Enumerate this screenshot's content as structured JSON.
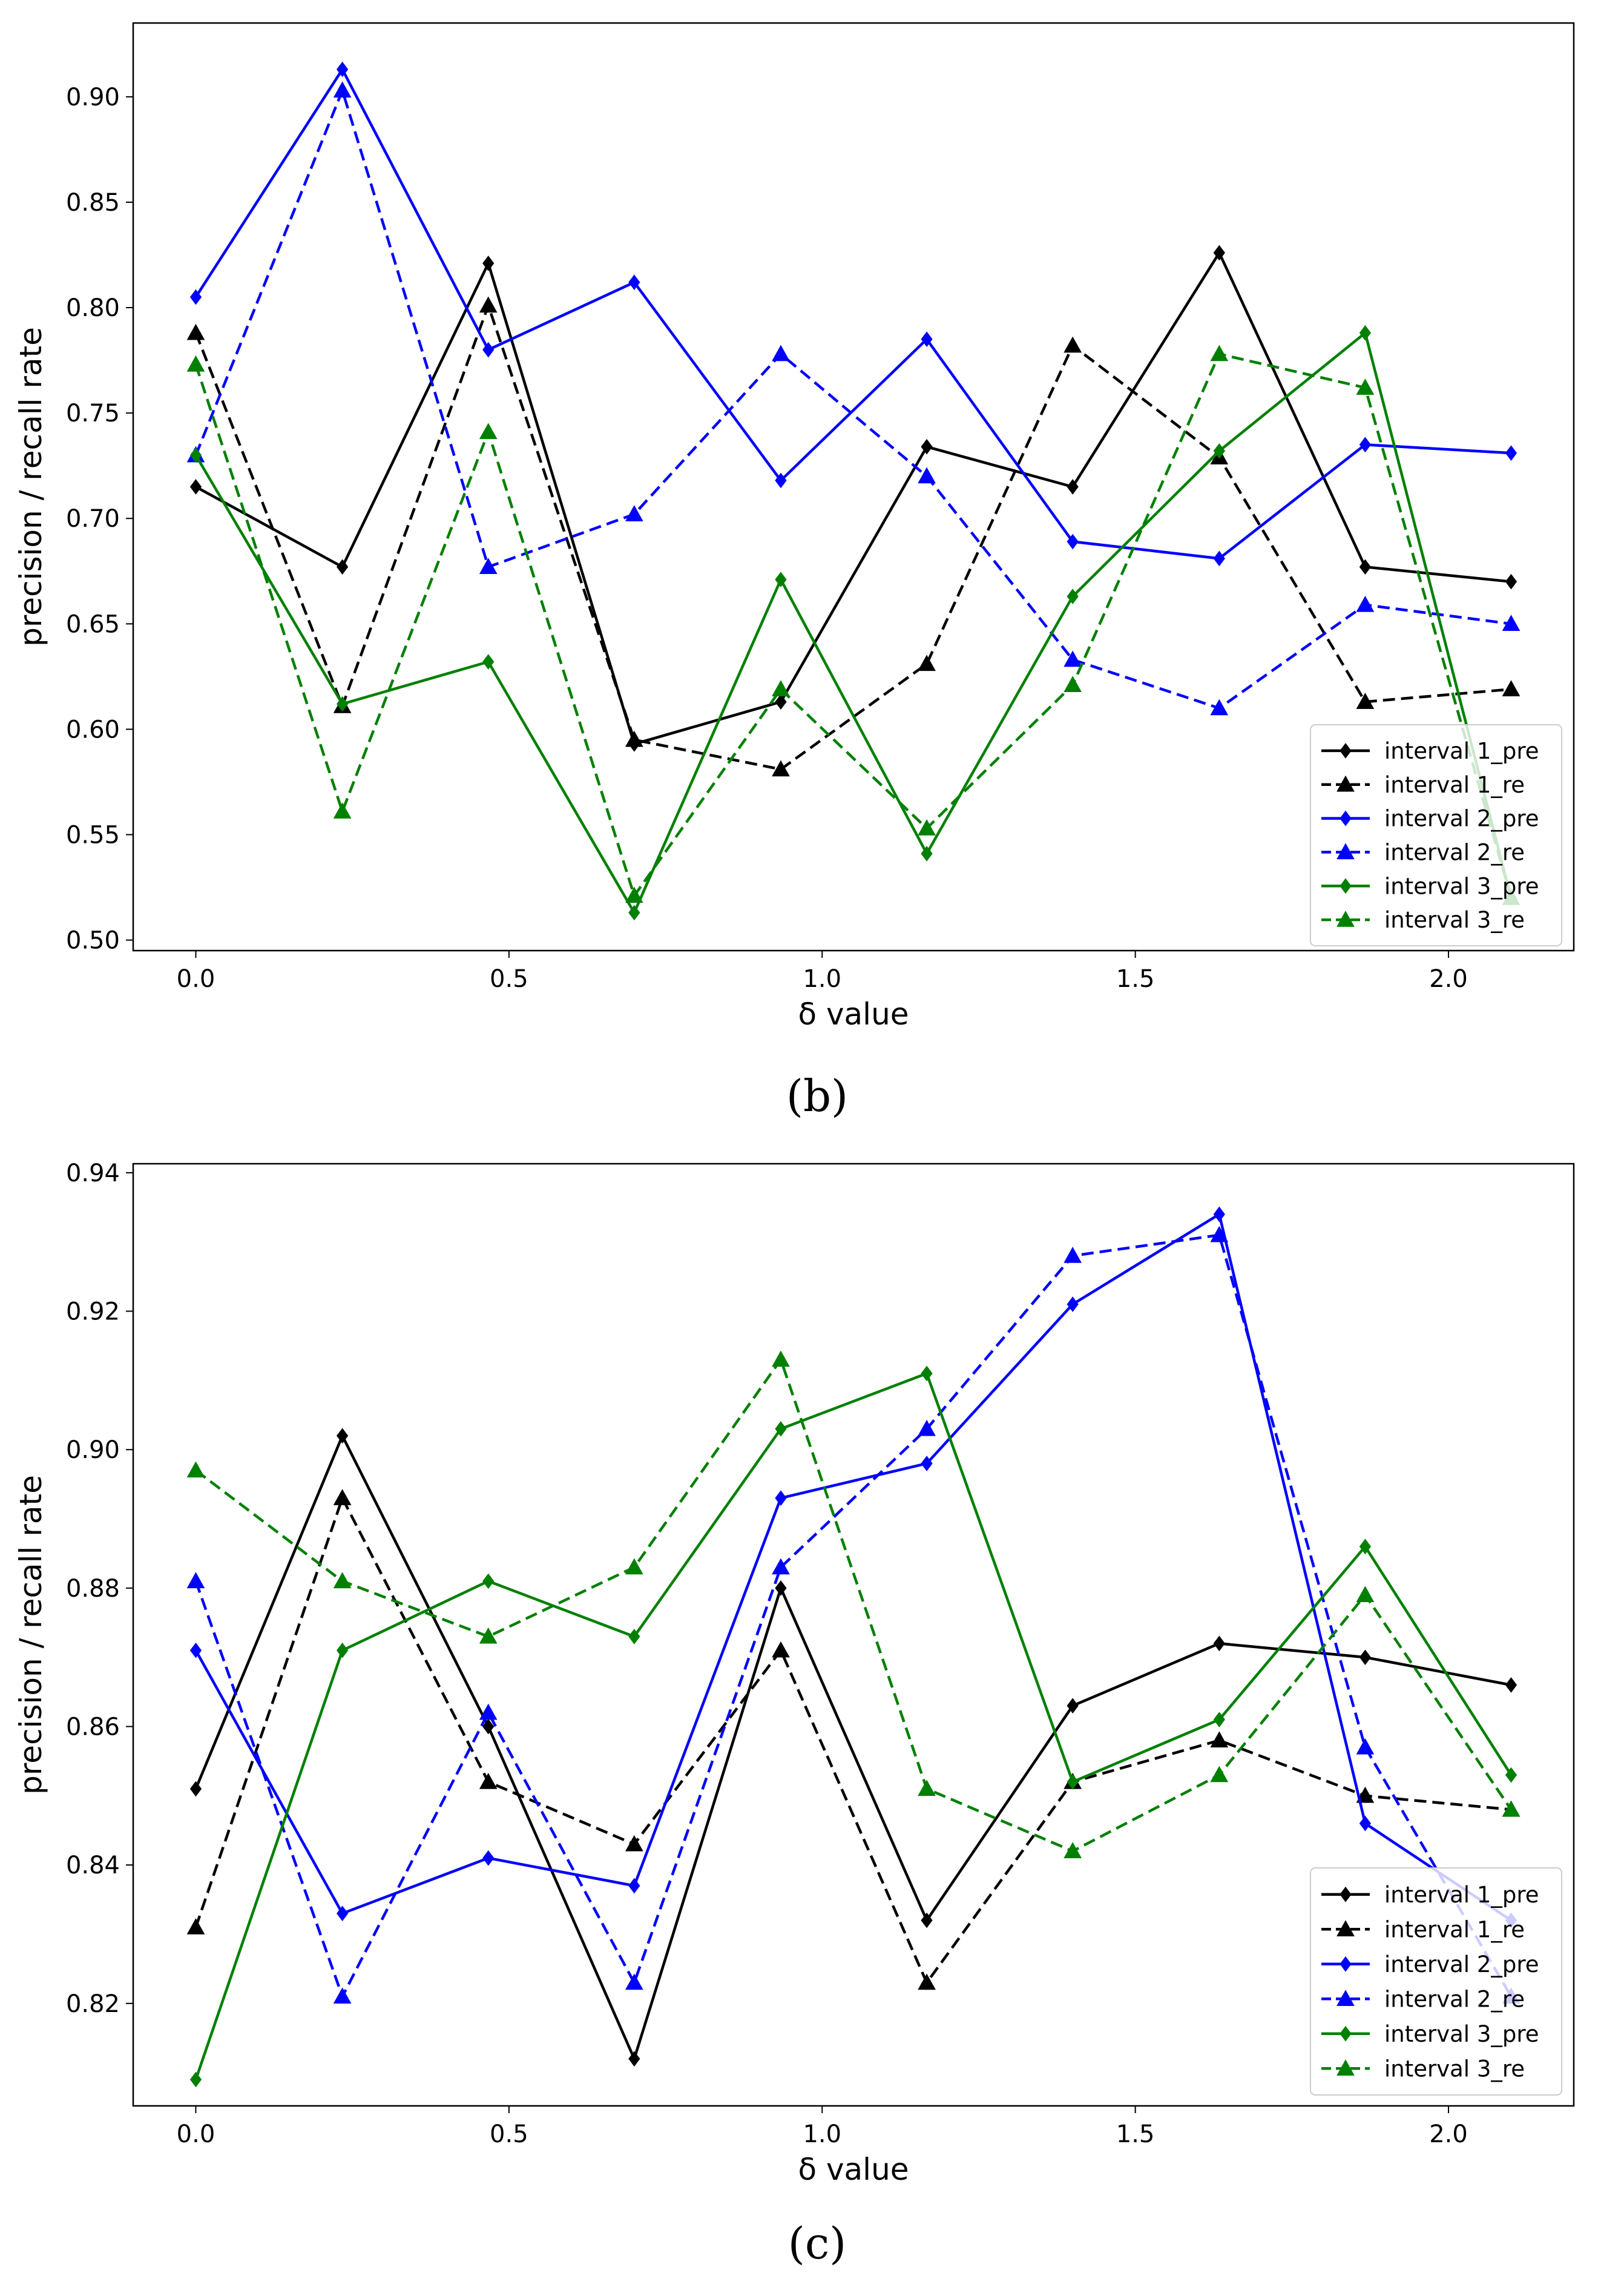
{
  "chart_data": [
    {
      "type": "line",
      "panel_label": "(b)",
      "xlabel": "δ value",
      "ylabel": "precision / recall rate",
      "xlim": [
        -0.1,
        2.2
      ],
      "ylim": [
        0.495,
        0.935
      ],
      "xticks": [
        0.0,
        0.5,
        1.0,
        1.5,
        2.0
      ],
      "xtick_labels": [
        "0.0",
        "0.5",
        "1.0",
        "1.5",
        "2.0"
      ],
      "yticks": [
        0.5,
        0.55,
        0.6,
        0.65,
        0.7,
        0.75,
        0.8,
        0.85,
        0.9
      ],
      "ytick_labels": [
        "0.50",
        "0.55",
        "0.60",
        "0.65",
        "0.70",
        "0.75",
        "0.80",
        "0.85",
        "0.90"
      ],
      "legend_position": "lower-right",
      "grid": false,
      "x": [
        0.0,
        0.234,
        0.467,
        0.7,
        0.934,
        1.167,
        1.4,
        1.634,
        1.867,
        2.1
      ],
      "series": [
        {
          "name": "interval 1_pre",
          "color": "#000000",
          "dash": "solid",
          "marker": "diamond",
          "values": [
            0.715,
            0.677,
            0.821,
            0.593,
            0.613,
            0.734,
            0.715,
            0.826,
            0.677,
            0.67
          ]
        },
        {
          "name": "interval 1_re",
          "color": "#000000",
          "dash": "dashed",
          "marker": "triangle",
          "values": [
            0.788,
            0.611,
            0.801,
            0.595,
            0.581,
            0.631,
            0.782,
            0.729,
            0.613,
            0.619
          ]
        },
        {
          "name": "interval 2_pre",
          "color": "#0000ff",
          "dash": "solid",
          "marker": "diamond",
          "values": [
            0.805,
            0.913,
            0.78,
            0.812,
            0.718,
            0.785,
            0.689,
            0.681,
            0.735,
            0.731
          ]
        },
        {
          "name": "interval 2_re",
          "color": "#0000ff",
          "dash": "dashed",
          "marker": "triangle",
          "values": [
            0.73,
            0.903,
            0.677,
            0.702,
            0.778,
            0.72,
            0.633,
            0.61,
            0.659,
            0.65
          ]
        },
        {
          "name": "interval 3_pre",
          "color": "#008000",
          "dash": "solid",
          "marker": "diamond",
          "values": [
            0.73,
            0.612,
            0.632,
            0.513,
            0.671,
            0.541,
            0.663,
            0.732,
            0.788,
            0.52
          ]
        },
        {
          "name": "interval 3_re",
          "color": "#008000",
          "dash": "dashed",
          "marker": "triangle",
          "values": [
            0.773,
            0.561,
            0.741,
            0.521,
            0.619,
            0.553,
            0.621,
            0.778,
            0.762,
            0.52
          ]
        }
      ]
    },
    {
      "type": "line",
      "panel_label": "(c)",
      "xlabel": "δ value",
      "ylabel": "precision / recall rate",
      "xlim": [
        -0.1,
        2.2
      ],
      "ylim": [
        0.8052,
        0.9413
      ],
      "xticks": [
        0.0,
        0.5,
        1.0,
        1.5,
        2.0
      ],
      "xtick_labels": [
        "0.0",
        "0.5",
        "1.0",
        "1.5",
        "2.0"
      ],
      "yticks": [
        0.82,
        0.84,
        0.86,
        0.88,
        0.9,
        0.92,
        0.94
      ],
      "ytick_labels": [
        "0.82",
        "0.84",
        "0.86",
        "0.88",
        "0.90",
        "0.92",
        "0.94"
      ],
      "legend_position": "lower-right",
      "grid": false,
      "x": [
        0.0,
        0.234,
        0.467,
        0.7,
        0.934,
        1.167,
        1.4,
        1.634,
        1.867,
        2.1
      ],
      "series": [
        {
          "name": "interval 1_pre",
          "color": "#000000",
          "dash": "solid",
          "marker": "diamond",
          "values": [
            0.851,
            0.902,
            0.86,
            0.812,
            0.88,
            0.832,
            0.863,
            0.872,
            0.87,
            0.866
          ]
        },
        {
          "name": "interval 1_re",
          "color": "#000000",
          "dash": "dashed",
          "marker": "triangle",
          "values": [
            0.831,
            0.893,
            0.852,
            0.843,
            0.871,
            0.823,
            0.852,
            0.858,
            0.85,
            0.848
          ]
        },
        {
          "name": "interval 2_pre",
          "color": "#0000ff",
          "dash": "solid",
          "marker": "diamond",
          "values": [
            0.871,
            0.833,
            0.841,
            0.837,
            0.893,
            0.898,
            0.921,
            0.934,
            0.846,
            0.832
          ]
        },
        {
          "name": "interval 2_re",
          "color": "#0000ff",
          "dash": "dashed",
          "marker": "triangle",
          "values": [
            0.881,
            0.821,
            0.862,
            0.823,
            0.883,
            0.903,
            0.928,
            0.931,
            0.857,
            0.821
          ]
        },
        {
          "name": "interval 3_pre",
          "color": "#008000",
          "dash": "solid",
          "marker": "diamond",
          "values": [
            0.809,
            0.871,
            0.881,
            0.873,
            0.903,
            0.911,
            0.852,
            0.861,
            0.886,
            0.853
          ]
        },
        {
          "name": "interval 3_re",
          "color": "#008000",
          "dash": "dashed",
          "marker": "triangle",
          "values": [
            0.897,
            0.881,
            0.873,
            0.883,
            0.913,
            0.851,
            0.842,
            0.853,
            0.879,
            0.848
          ]
        }
      ]
    }
  ]
}
